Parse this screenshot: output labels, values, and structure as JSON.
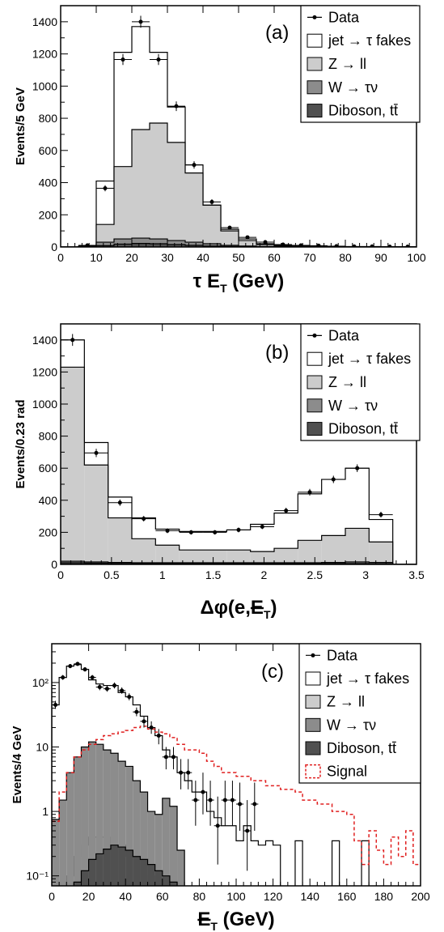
{
  "chart_data": [
    {
      "type": "bar",
      "panel_label": "(a)",
      "xlabel": "τ E",
      "xlabel_sub": "T",
      "xlabel_unit": " (GeV)",
      "ylabel": "Events/5 GeV",
      "xlim": [
        0,
        100
      ],
      "ylim": [
        0,
        1500
      ],
      "log_y": false,
      "xticks": [
        0,
        10,
        20,
        30,
        40,
        50,
        60,
        70,
        80,
        90,
        100
      ],
      "yticks": [
        0,
        200,
        400,
        600,
        800,
        1000,
        1200,
        1400
      ],
      "legend": [
        {
          "label": "Data",
          "kind": "data"
        },
        {
          "label": "jet → τ fakes",
          "kind": "box",
          "color": "#ffffff"
        },
        {
          "label": "Z  →  ll",
          "kind": "box",
          "color": "#cccccc"
        },
        {
          "label": "W → τν",
          "kind": "box",
          "color": "#8c8c8c"
        },
        {
          "label": "Diboson, tt̄",
          "kind": "box",
          "color": "#505050"
        }
      ],
      "bin_edges": [
        0,
        5,
        10,
        15,
        20,
        25,
        30,
        35,
        40,
        45,
        50,
        55,
        60,
        65,
        70,
        75,
        80,
        85,
        90,
        95,
        100
      ],
      "stack": [
        {
          "name": "Diboson, tt̄",
          "color": "#505050",
          "values": [
            0,
            0,
            8,
            18,
            22,
            20,
            15,
            10,
            6,
            3,
            2,
            1,
            1,
            0,
            0,
            0,
            0,
            0,
            0,
            0
          ]
        },
        {
          "name": "W → τν",
          "color": "#8c8c8c",
          "values": [
            0,
            0,
            30,
            50,
            55,
            50,
            40,
            30,
            20,
            10,
            6,
            3,
            2,
            1,
            0,
            0,
            0,
            0,
            0,
            0
          ]
        },
        {
          "name": "Z  →  ll",
          "color": "#cccccc",
          "values": [
            0,
            2,
            140,
            500,
            730,
            770,
            650,
            460,
            260,
            100,
            40,
            15,
            6,
            3,
            1,
            0,
            0,
            0,
            0,
            0
          ]
        },
        {
          "name": "jet → τ fakes",
          "color": "#ffffff",
          "values": [
            0,
            5,
            410,
            1210,
            1370,
            1210,
            870,
            510,
            260,
            110,
            50,
            20,
            10,
            5,
            3,
            2,
            1,
            1,
            1,
            1
          ]
        }
      ],
      "data_points": [
        {
          "x": 7.5,
          "y": 10,
          "err": 5
        },
        {
          "x": 12.5,
          "y": 365,
          "err": 19
        },
        {
          "x": 17.5,
          "y": 1165,
          "err": 34
        },
        {
          "x": 22.5,
          "y": 1400,
          "err": 37
        },
        {
          "x": 27.5,
          "y": 1165,
          "err": 34
        },
        {
          "x": 32.5,
          "y": 875,
          "err": 30
        },
        {
          "x": 37.5,
          "y": 510,
          "err": 23
        },
        {
          "x": 42.5,
          "y": 280,
          "err": 17
        },
        {
          "x": 47.5,
          "y": 120,
          "err": 11
        },
        {
          "x": 52.5,
          "y": 60,
          "err": 8
        },
        {
          "x": 57.5,
          "y": 30,
          "err": 6
        },
        {
          "x": 62.5,
          "y": 15,
          "err": 4
        },
        {
          "x": 67.5,
          "y": 10,
          "err": 3
        },
        {
          "x": 72.5,
          "y": 8,
          "err": 3
        },
        {
          "x": 77.5,
          "y": 5,
          "err": 2
        },
        {
          "x": 82.5,
          "y": 3,
          "err": 2
        },
        {
          "x": 87.5,
          "y": 3,
          "err": 2
        },
        {
          "x": 92.5,
          "y": 2,
          "err": 1
        },
        {
          "x": 97.5,
          "y": 2,
          "err": 1
        }
      ]
    },
    {
      "type": "bar",
      "panel_label": "(b)",
      "xlabel": "Δφ(e,",
      "xlabel_sub": "T",
      "xlabel_unit": ")",
      "xlabel_met": "E",
      "ylabel": "Events/0.23 rad",
      "xlim": [
        0,
        3.5
      ],
      "ylim": [
        0,
        1500
      ],
      "log_y": false,
      "xticks": [
        0,
        0.5,
        1,
        1.5,
        2,
        2.5,
        3,
        3.5
      ],
      "yticks": [
        0,
        200,
        400,
        600,
        800,
        1000,
        1200,
        1400
      ],
      "legend": [
        {
          "label": "Data",
          "kind": "data"
        },
        {
          "label": "jet → τ fakes",
          "kind": "box",
          "color": "#ffffff"
        },
        {
          "label": "Z  →  ll",
          "kind": "box",
          "color": "#cccccc"
        },
        {
          "label": "W → τν",
          "kind": "box",
          "color": "#8c8c8c"
        },
        {
          "label": "Diboson, tt̄",
          "kind": "box",
          "color": "#505050"
        }
      ],
      "bin_edges": [
        0,
        0.2333,
        0.4667,
        0.7,
        0.9333,
        1.1667,
        1.4,
        1.6333,
        1.8667,
        2.1,
        2.3333,
        2.5667,
        2.8,
        3.0333,
        3.2667,
        3.5
      ],
      "stack": [
        {
          "name": "Diboson, tt̄",
          "color": "#505050",
          "values": [
            10,
            8,
            6,
            5,
            5,
            5,
            5,
            5,
            5,
            5,
            5,
            5,
            5,
            4,
            0
          ]
        },
        {
          "name": "W → τν",
          "color": "#8c8c8c",
          "values": [
            20,
            15,
            12,
            10,
            10,
            10,
            10,
            10,
            10,
            10,
            10,
            12,
            15,
            12,
            0
          ]
        },
        {
          "name": "Z  →  ll",
          "color": "#cccccc",
          "values": [
            1230,
            620,
            290,
            160,
            120,
            90,
            90,
            90,
            80,
            100,
            150,
            180,
            225,
            140,
            0
          ]
        },
        {
          "name": "jet → τ fakes",
          "color": "#ffffff",
          "values": [
            1400,
            760,
            420,
            290,
            220,
            205,
            205,
            215,
            250,
            320,
            440,
            530,
            600,
            280,
            0
          ]
        }
      ],
      "data_points": [
        {
          "x": 0.117,
          "y": 1400,
          "err": 37
        },
        {
          "x": 0.35,
          "y": 695,
          "err": 26
        },
        {
          "x": 0.583,
          "y": 385,
          "err": 20
        },
        {
          "x": 0.817,
          "y": 285,
          "err": 17
        },
        {
          "x": 1.05,
          "y": 210,
          "err": 15
        },
        {
          "x": 1.283,
          "y": 200,
          "err": 14
        },
        {
          "x": 1.517,
          "y": 200,
          "err": 14
        },
        {
          "x": 1.75,
          "y": 215,
          "err": 15
        },
        {
          "x": 1.983,
          "y": 235,
          "err": 15
        },
        {
          "x": 2.217,
          "y": 335,
          "err": 18
        },
        {
          "x": 2.45,
          "y": 450,
          "err": 21
        },
        {
          "x": 2.683,
          "y": 530,
          "err": 23
        },
        {
          "x": 2.917,
          "y": 600,
          "err": 24
        },
        {
          "x": 3.15,
          "y": 310,
          "err": 18
        }
      ]
    },
    {
      "type": "bar",
      "panel_label": "(c)",
      "xlabel": "",
      "xlabel_met": "E",
      "xlabel_sub": "T",
      "xlabel_unit": " (GeV)",
      "ylabel": "Events/4 GeV",
      "xlim": [
        0,
        200
      ],
      "ylim": [
        0.07,
        400
      ],
      "log_y": true,
      "xticks": [
        0,
        20,
        40,
        60,
        80,
        100,
        120,
        140,
        160,
        180,
        200
      ],
      "yticks": [
        0.1,
        1,
        10,
        100
      ],
      "ytick_labels": [
        "10⁻¹",
        "1",
        "10",
        "10²"
      ],
      "legend": [
        {
          "label": "Data",
          "kind": "data"
        },
        {
          "label": "jet → τ fakes",
          "kind": "box",
          "color": "#ffffff"
        },
        {
          "label": "Z  →  ll",
          "kind": "box",
          "color": "#cccccc"
        },
        {
          "label": "W → τν",
          "kind": "box",
          "color": "#8c8c8c"
        },
        {
          "label": "Diboson, tt̄",
          "kind": "box",
          "color": "#505050"
        },
        {
          "label": "Signal",
          "kind": "dashed",
          "color": "#e02020"
        }
      ],
      "bin_edges": [
        0,
        4,
        8,
        12,
        16,
        20,
        24,
        28,
        32,
        36,
        40,
        44,
        48,
        52,
        56,
        60,
        64,
        68,
        72,
        76,
        80,
        84,
        88,
        92,
        96,
        100,
        104,
        108,
        112,
        116,
        120,
        124,
        128,
        132,
        136,
        140,
        144,
        148,
        152,
        156,
        160,
        164,
        168,
        172,
        176,
        180,
        184,
        188,
        192,
        196,
        200
      ],
      "stack": [
        {
          "name": "Diboson, tt̄",
          "color": "#505050",
          "values": [
            0,
            0,
            0,
            0.08,
            0.12,
            0.18,
            0.22,
            0.26,
            0.3,
            0.28,
            0.25,
            0.2,
            0.18,
            0.15,
            0.12,
            0.1,
            0.08,
            0,
            0,
            0,
            0,
            0,
            0,
            0,
            0,
            0,
            0,
            0,
            0,
            0,
            0,
            0,
            0,
            0,
            0,
            0,
            0,
            0,
            0,
            0,
            0,
            0,
            0,
            0,
            0,
            0,
            0,
            0,
            0,
            0
          ]
        },
        {
          "name": "W → τν",
          "color": "#8c8c8c",
          "values": [
            0.75,
            1.5,
            4,
            7,
            10,
            12,
            11,
            9,
            8,
            6,
            5,
            3,
            2,
            1,
            0.9,
            1.6,
            1.2,
            0.25,
            0,
            0,
            0,
            0,
            0,
            0,
            0,
            0,
            0,
            0,
            0,
            0,
            0,
            0,
            0,
            0,
            0,
            0,
            0,
            0,
            0,
            0,
            0,
            0,
            0,
            0,
            0,
            0,
            0,
            0,
            0,
            0
          ]
        },
        {
          "name": "Z  →  ll",
          "color": "#cccccc",
          "values": [
            0,
            0,
            0.1,
            0.2,
            0.3,
            0.4,
            0.4,
            0.4,
            0.3,
            0.3,
            0.2,
            0.2,
            0.1,
            0.1,
            0,
            0,
            0,
            0,
            0,
            0,
            0,
            0,
            0,
            0,
            0,
            0,
            0,
            0,
            0,
            0,
            0,
            0,
            0,
            0,
            0,
            0,
            0,
            0,
            0,
            0,
            0,
            0,
            0,
            0,
            0,
            0,
            0,
            0,
            0,
            0
          ]
        },
        {
          "name": "jet → τ fakes",
          "color": "#ffffff",
          "values": [
            45,
            120,
            180,
            190,
            160,
            110,
            95,
            90,
            90,
            70,
            60,
            45,
            30,
            20,
            15,
            9,
            7,
            4,
            3,
            2,
            2,
            1,
            0.8,
            0.6,
            0.6,
            0.35,
            0.6,
            0.35,
            0.3,
            0.35,
            0.3,
            0,
            0,
            0.35,
            0,
            0,
            0,
            0,
            0.35,
            0,
            0,
            0,
            0.35,
            0,
            0,
            0,
            0,
            0,
            0,
            0
          ]
        }
      ],
      "signal": {
        "name": "Signal",
        "color": "#e02020",
        "values": [
          0.7,
          2,
          4,
          7,
          9,
          11,
          13,
          15,
          16,
          17,
          18,
          20,
          21,
          19,
          17,
          16,
          14,
          11,
          9,
          9,
          8,
          6,
          5,
          4,
          4,
          3.5,
          3.5,
          3,
          3,
          2.5,
          2.5,
          2.2,
          2.2,
          2,
          1.5,
          1.5,
          1.3,
          1.3,
          1,
          1,
          0.9,
          0.35,
          0.15,
          0.5,
          0.25,
          0.15,
          0.4,
          0.2,
          0.5,
          0.15
        ]
      },
      "data_points": [
        {
          "x": 2,
          "y": 45,
          "lo": 39,
          "hi": 52
        },
        {
          "x": 6,
          "y": 120,
          "lo": 110,
          "hi": 131
        },
        {
          "x": 10,
          "y": 180,
          "lo": 167,
          "hi": 194
        },
        {
          "x": 14,
          "y": 195,
          "lo": 181,
          "hi": 209
        },
        {
          "x": 18,
          "y": 160,
          "lo": 148,
          "hi": 173
        },
        {
          "x": 22,
          "y": 120,
          "lo": 110,
          "hi": 131
        },
        {
          "x": 26,
          "y": 85,
          "lo": 76,
          "hi": 94
        },
        {
          "x": 30,
          "y": 80,
          "lo": 72,
          "hi": 89
        },
        {
          "x": 34,
          "y": 90,
          "lo": 81,
          "hi": 100
        },
        {
          "x": 38,
          "y": 75,
          "lo": 67,
          "hi": 84
        },
        {
          "x": 42,
          "y": 60,
          "lo": 53,
          "hi": 68
        },
        {
          "x": 46,
          "y": 35,
          "lo": 30,
          "hi": 41
        },
        {
          "x": 50,
          "y": 25,
          "lo": 20,
          "hi": 30
        },
        {
          "x": 54,
          "y": 20,
          "lo": 16,
          "hi": 25
        },
        {
          "x": 58,
          "y": 15,
          "lo": 11,
          "hi": 19
        },
        {
          "x": 62,
          "y": 7,
          "lo": 4.5,
          "hi": 10
        },
        {
          "x": 66,
          "y": 7,
          "lo": 4.5,
          "hi": 10
        },
        {
          "x": 70,
          "y": 4,
          "lo": 2.2,
          "hi": 6.5
        },
        {
          "x": 74,
          "y": 4,
          "lo": 2.2,
          "hi": 6.5
        },
        {
          "x": 78,
          "y": 1.5,
          "lo": 0.6,
          "hi": 3
        },
        {
          "x": 82,
          "y": 2,
          "lo": 0.9,
          "hi": 4
        },
        {
          "x": 86,
          "y": 1.5,
          "lo": 0.6,
          "hi": 3
        },
        {
          "x": 90,
          "y": 0.6,
          "lo": 0.15,
          "hi": 1.7
        },
        {
          "x": 94,
          "y": 1.5,
          "lo": 0.6,
          "hi": 3
        },
        {
          "x": 98,
          "y": 1.5,
          "lo": 0.6,
          "hi": 3
        },
        {
          "x": 102,
          "y": 1.3,
          "lo": 0.5,
          "hi": 2.8
        },
        {
          "x": 106,
          "y": 0.5,
          "lo": 0.12,
          "hi": 1.5
        },
        {
          "x": 110,
          "y": 1.3,
          "lo": 0.5,
          "hi": 2.8
        }
      ]
    }
  ]
}
